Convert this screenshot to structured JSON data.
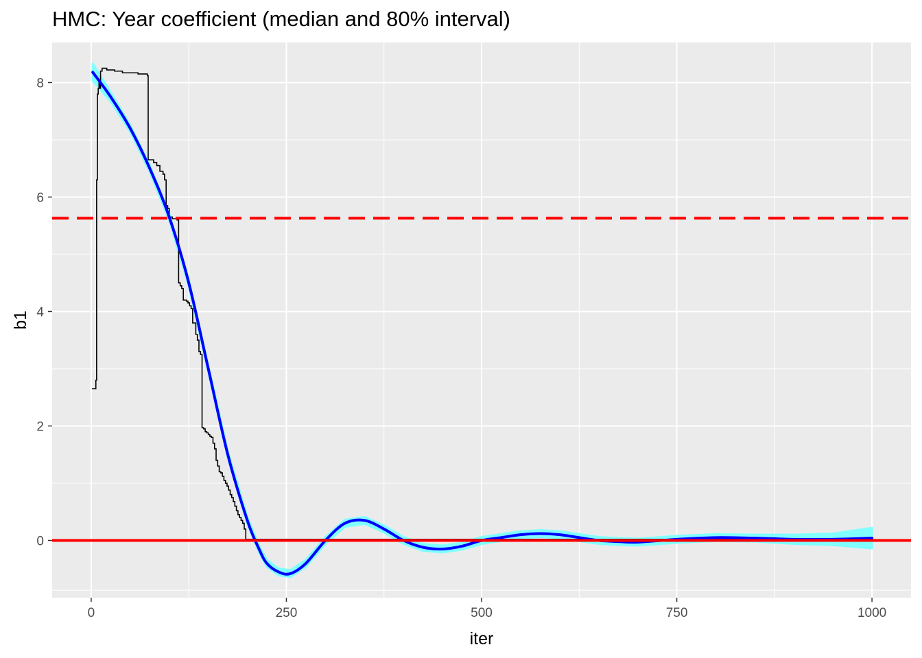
{
  "chart_data": {
    "type": "line",
    "title": "HMC: Year coefficient (median and 80% interval)",
    "xlabel": "iter",
    "ylabel": "b1",
    "xlim": [
      -50,
      1050
    ],
    "ylim": [
      -1.0,
      8.7
    ],
    "x_ticks": [
      0,
      250,
      500,
      750,
      1000
    ],
    "x_tick_labels": [
      "0",
      "250",
      "500",
      "750",
      "1000"
    ],
    "y_ticks": [
      0,
      2,
      4,
      6,
      8
    ],
    "y_tick_labels": [
      "0",
      "2",
      "4",
      "6",
      "8"
    ],
    "grid": true,
    "legend": "none",
    "colors": {
      "panel_background": "#ebebeb",
      "grid": "#ffffff",
      "trace": "#000000",
      "smooth": "#0000ff",
      "ribbon": "#80ffff",
      "hline_solid": "#ff0000",
      "hline_dashed": "#ff0000"
    },
    "reference_lines": [
      {
        "y": 0.0,
        "style": "solid",
        "color": "#ff0000"
      },
      {
        "y": 5.63,
        "style": "dashed",
        "color": "#ff0000"
      }
    ],
    "series": [
      {
        "kind": "trace",
        "x": [
          1,
          5,
          6,
          7,
          8,
          9,
          10,
          11,
          12,
          14,
          20,
          30,
          40,
          60,
          72,
          73,
          75,
          80,
          84,
          88,
          92,
          94,
          96,
          98,
          100,
          104,
          106,
          110,
          112,
          114,
          116,
          118,
          120,
          122,
          124,
          126,
          128,
          130,
          134,
          136,
          138,
          140,
          142,
          144,
          146,
          148,
          150,
          152,
          154,
          156,
          158,
          160,
          162,
          164,
          166,
          168,
          170,
          172,
          174,
          176,
          178,
          180,
          182,
          184,
          186,
          188,
          190,
          192,
          194,
          196,
          198,
          200,
          202,
          205,
          210,
          220,
          250,
          300,
          350,
          400,
          450,
          500,
          550,
          600,
          650,
          700,
          750,
          800,
          850,
          900,
          950,
          1000
        ],
        "y": [
          2.65,
          2.65,
          2.8,
          6.3,
          7.8,
          7.9,
          8.0,
          7.9,
          8.2,
          8.25,
          8.22,
          8.2,
          8.17,
          8.15,
          8.12,
          6.65,
          6.65,
          6.6,
          6.55,
          6.45,
          6.4,
          6.3,
          5.85,
          5.8,
          5.65,
          5.62,
          5.62,
          5.6,
          4.5,
          4.45,
          4.4,
          4.2,
          4.2,
          4.18,
          4.15,
          4.1,
          4.05,
          3.8,
          3.6,
          3.5,
          3.3,
          3.25,
          1.97,
          1.95,
          1.9,
          1.88,
          1.85,
          1.82,
          1.8,
          1.7,
          1.6,
          1.4,
          1.3,
          1.2,
          1.18,
          1.12,
          1.05,
          1.0,
          0.95,
          0.88,
          0.8,
          0.75,
          0.68,
          0.6,
          0.52,
          0.45,
          0.4,
          0.35,
          0.3,
          0.2,
          0.02,
          0.02,
          0.02,
          0.02,
          0.02,
          0.02,
          0.02,
          0.02,
          0.02,
          0.02,
          0.02,
          0.02,
          0.02,
          0.02,
          0.02,
          0.02,
          0.02,
          0.02,
          0.02,
          0.02,
          0.02,
          0.02
        ]
      },
      {
        "kind": "smooth",
        "x": [
          2,
          25,
          50,
          75,
          100,
          125,
          150,
          175,
          200,
          215,
          225,
          240,
          255,
          275,
          300,
          325,
          350,
          375,
          400,
          425,
          450,
          475,
          500,
          525,
          550,
          575,
          600,
          625,
          650,
          675,
          700,
          750,
          800,
          850,
          900,
          950,
          1000
        ],
        "y": [
          8.18,
          7.75,
          7.2,
          6.5,
          5.65,
          4.5,
          3.0,
          1.5,
          0.35,
          -0.15,
          -0.4,
          -0.55,
          -0.58,
          -0.4,
          0.0,
          0.3,
          0.35,
          0.2,
          0.0,
          -0.12,
          -0.15,
          -0.1,
          0.0,
          0.05,
          0.1,
          0.12,
          0.1,
          0.05,
          0.0,
          -0.02,
          -0.03,
          0.02,
          0.05,
          0.04,
          0.02,
          0.02,
          0.04
        ],
        "band": [
          0.15,
          0.08,
          0.06,
          0.06,
          0.06,
          0.06,
          0.06,
          0.06,
          0.06,
          0.06,
          0.06,
          0.06,
          0.06,
          0.06,
          0.06,
          0.06,
          0.06,
          0.06,
          0.06,
          0.06,
          0.06,
          0.06,
          0.06,
          0.06,
          0.06,
          0.06,
          0.06,
          0.06,
          0.06,
          0.06,
          0.06,
          0.06,
          0.06,
          0.06,
          0.08,
          0.1,
          0.18
        ]
      }
    ]
  }
}
